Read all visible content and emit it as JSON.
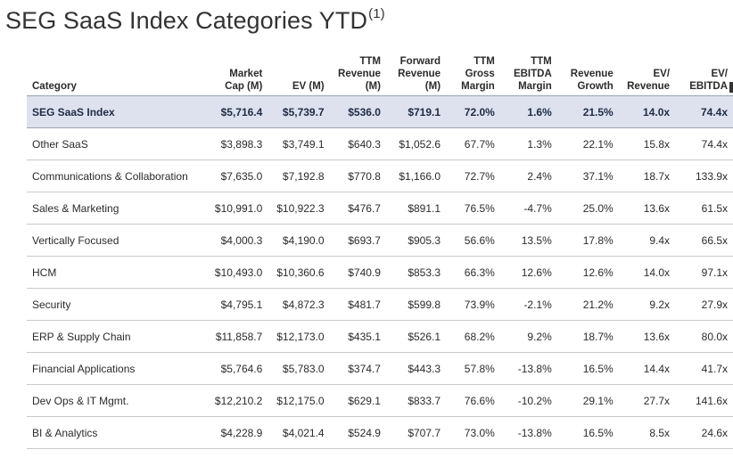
{
  "title": "SEG SaaS Index Categories YTD",
  "title_note": "(1)",
  "headers": {
    "category": "Category",
    "market_cap": [
      "Market",
      "Cap (M)"
    ],
    "ev": [
      "EV (M)"
    ],
    "ttm_revenue": [
      "TTM",
      "Revenue",
      "(M)"
    ],
    "forward_revenue": [
      "Forward",
      "Revenue",
      "(M)"
    ],
    "ttm_gross_margin": [
      "TTM",
      "Gross",
      "Margin"
    ],
    "ttm_ebitda_margin": [
      "TTM",
      "EBITDA",
      "Margin"
    ],
    "revenue_growth": [
      "Revenue",
      "Growth"
    ],
    "ev_revenue": [
      "EV/",
      "Revenue"
    ],
    "ev_ebitda": [
      "EV/",
      "EBITDA"
    ]
  },
  "rows": [
    {
      "category": "SEG SaaS Index",
      "market_cap": "$5,716.4",
      "ev": "$5,739.7",
      "ttm_revenue": "$536.0",
      "forward_revenue": "$719.1",
      "ttm_gross_margin": "72.0%",
      "ttm_ebitda_margin": "1.6%",
      "revenue_growth": "21.5%",
      "ev_revenue": "14.0x",
      "ev_ebitda": "74.4x"
    },
    {
      "category": "Other SaaS",
      "market_cap": "$3,898.3",
      "ev": "$3,749.1",
      "ttm_revenue": "$640.3",
      "forward_revenue": "$1,052.6",
      "ttm_gross_margin": "67.7%",
      "ttm_ebitda_margin": "1.3%",
      "revenue_growth": "22.1%",
      "ev_revenue": "15.8x",
      "ev_ebitda": "74.4x"
    },
    {
      "category": "Communications & Collaboration",
      "market_cap": "$7,635.0",
      "ev": "$7,192.8",
      "ttm_revenue": "$770.8",
      "forward_revenue": "$1,166.0",
      "ttm_gross_margin": "72.7%",
      "ttm_ebitda_margin": "2.4%",
      "revenue_growth": "37.1%",
      "ev_revenue": "18.7x",
      "ev_ebitda": "133.9x"
    },
    {
      "category": "Sales & Marketing",
      "market_cap": "$10,991.0",
      "ev": "$10,922.3",
      "ttm_revenue": "$476.7",
      "forward_revenue": "$891.1",
      "ttm_gross_margin": "76.5%",
      "ttm_ebitda_margin": "-4.7%",
      "revenue_growth": "25.0%",
      "ev_revenue": "13.6x",
      "ev_ebitda": "61.5x"
    },
    {
      "category": "Vertically Focused",
      "market_cap": "$4,000.3",
      "ev": "$4,190.0",
      "ttm_revenue": "$693.7",
      "forward_revenue": "$905.3",
      "ttm_gross_margin": "56.6%",
      "ttm_ebitda_margin": "13.5%",
      "revenue_growth": "17.8%",
      "ev_revenue": "9.4x",
      "ev_ebitda": "66.5x"
    },
    {
      "category": "HCM",
      "market_cap": "$10,493.0",
      "ev": "$10,360.6",
      "ttm_revenue": "$740.9",
      "forward_revenue": "$853.3",
      "ttm_gross_margin": "66.3%",
      "ttm_ebitda_margin": "12.6%",
      "revenue_growth": "12.6%",
      "ev_revenue": "14.0x",
      "ev_ebitda": "97.1x"
    },
    {
      "category": "Security",
      "market_cap": "$4,795.1",
      "ev": "$4,872.3",
      "ttm_revenue": "$481.7",
      "forward_revenue": "$599.8",
      "ttm_gross_margin": "73.9%",
      "ttm_ebitda_margin": "-2.1%",
      "revenue_growth": "21.2%",
      "ev_revenue": "9.2x",
      "ev_ebitda": "27.9x"
    },
    {
      "category": "ERP & Supply Chain",
      "market_cap": "$11,858.7",
      "ev": "$12,173.0",
      "ttm_revenue": "$435.1",
      "forward_revenue": "$526.1",
      "ttm_gross_margin": "68.2%",
      "ttm_ebitda_margin": "9.2%",
      "revenue_growth": "18.7%",
      "ev_revenue": "13.6x",
      "ev_ebitda": "80.0x"
    },
    {
      "category": "Financial Applications",
      "market_cap": "$5,764.6",
      "ev": "$5,783.0",
      "ttm_revenue": "$374.7",
      "forward_revenue": "$443.3",
      "ttm_gross_margin": "57.8%",
      "ttm_ebitda_margin": "-13.8%",
      "revenue_growth": "16.5%",
      "ev_revenue": "14.4x",
      "ev_ebitda": "41.7x"
    },
    {
      "category": "Dev Ops & IT Mgmt.",
      "market_cap": "$12,210.2",
      "ev": "$12,175.0",
      "ttm_revenue": "$629.1",
      "forward_revenue": "$833.7",
      "ttm_gross_margin": "76.6%",
      "ttm_ebitda_margin": "-10.2%",
      "revenue_growth": "29.1%",
      "ev_revenue": "27.7x",
      "ev_ebitda": "141.6x"
    },
    {
      "category": "BI & Analytics",
      "market_cap": "$4,228.9",
      "ev": "$4,021.4",
      "ttm_revenue": "$524.9",
      "forward_revenue": "$707.7",
      "ttm_gross_margin": "73.0%",
      "ttm_ebitda_margin": "-13.8%",
      "revenue_growth": "16.5%",
      "ev_revenue": "8.5x",
      "ev_ebitda": "24.6x"
    }
  ]
}
